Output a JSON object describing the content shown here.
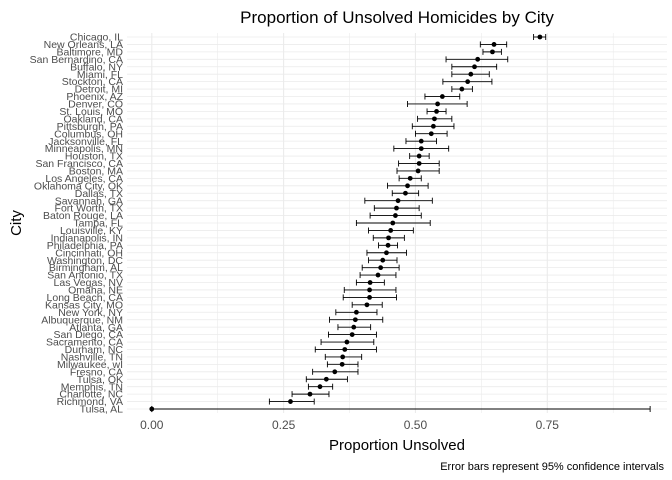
{
  "chart_data": {
    "type": "scatter",
    "title": "Proportion of Unsolved Homicides by City",
    "xlabel": "Proportion Unsolved",
    "ylabel": "City",
    "caption": "Error bars represent 95% confidence intervals",
    "xlim": [
      -0.047,
      0.977
    ],
    "x_ticks": [
      "0.00",
      "0.25",
      "0.50",
      "0.75"
    ],
    "x_tick_values": [
      0,
      0.25,
      0.5,
      0.75
    ],
    "grid": true,
    "legend": "none",
    "colors": {
      "point": "#000000",
      "grid": "#ebebeb",
      "error_bar": "#000000"
    },
    "points": [
      {
        "city": "Chicago, IL",
        "estimate": 0.736,
        "low": 0.724,
        "high": 0.747
      },
      {
        "city": "New Orleans, LA",
        "estimate": 0.649,
        "low": 0.623,
        "high": 0.673
      },
      {
        "city": "Baltimore, MD",
        "estimate": 0.646,
        "low": 0.628,
        "high": 0.663
      },
      {
        "city": "San Bernardino, CA",
        "estimate": 0.618,
        "low": 0.558,
        "high": 0.675
      },
      {
        "city": "Buffalo, NY",
        "estimate": 0.612,
        "low": 0.569,
        "high": 0.654
      },
      {
        "city": "Miami, FL",
        "estimate": 0.605,
        "low": 0.569,
        "high": 0.64
      },
      {
        "city": "Stockton, CA",
        "estimate": 0.599,
        "low": 0.552,
        "high": 0.645
      },
      {
        "city": "Detroit, MI",
        "estimate": 0.588,
        "low": 0.569,
        "high": 0.608
      },
      {
        "city": "Phoenix, AZ",
        "estimate": 0.551,
        "low": 0.518,
        "high": 0.584
      },
      {
        "city": "Denver, CO",
        "estimate": 0.542,
        "low": 0.485,
        "high": 0.598
      },
      {
        "city": "St. Louis, MO",
        "estimate": 0.54,
        "low": 0.522,
        "high": 0.558
      },
      {
        "city": "Oakland, CA",
        "estimate": 0.536,
        "low": 0.504,
        "high": 0.569
      },
      {
        "city": "Pittsburgh, PA",
        "estimate": 0.534,
        "low": 0.494,
        "high": 0.573
      },
      {
        "city": "Columbus, OH",
        "estimate": 0.53,
        "low": 0.5,
        "high": 0.56
      },
      {
        "city": "Jacksonville, FL",
        "estimate": 0.511,
        "low": 0.482,
        "high": 0.54
      },
      {
        "city": "Minneapolis, MN",
        "estimate": 0.511,
        "low": 0.459,
        "high": 0.563
      },
      {
        "city": "Houston, TX",
        "estimate": 0.507,
        "low": 0.489,
        "high": 0.526
      },
      {
        "city": "San Francisco, CA",
        "estimate": 0.507,
        "low": 0.468,
        "high": 0.545
      },
      {
        "city": "Boston, MA",
        "estimate": 0.505,
        "low": 0.465,
        "high": 0.545
      },
      {
        "city": "Los Angeles, CA",
        "estimate": 0.49,
        "low": 0.469,
        "high": 0.511
      },
      {
        "city": "Oklahoma City, OK",
        "estimate": 0.485,
        "low": 0.447,
        "high": 0.524
      },
      {
        "city": "Dallas, TX",
        "estimate": 0.481,
        "low": 0.456,
        "high": 0.506
      },
      {
        "city": "Savannah, GA",
        "estimate": 0.467,
        "low": 0.404,
        "high": 0.532
      },
      {
        "city": "Fort Worth, TX",
        "estimate": 0.464,
        "low": 0.422,
        "high": 0.507
      },
      {
        "city": "Baton Rouge, LA",
        "estimate": 0.462,
        "low": 0.414,
        "high": 0.511
      },
      {
        "city": "Tampa, FL",
        "estimate": 0.457,
        "low": 0.388,
        "high": 0.528
      },
      {
        "city": "Louisville, KY",
        "estimate": 0.453,
        "low": 0.411,
        "high": 0.496
      },
      {
        "city": "Indianapolis, IN",
        "estimate": 0.449,
        "low": 0.42,
        "high": 0.479
      },
      {
        "city": "Philadelphia, PA",
        "estimate": 0.448,
        "low": 0.43,
        "high": 0.466
      },
      {
        "city": "Cincinnati, OH",
        "estimate": 0.445,
        "low": 0.408,
        "high": 0.483
      },
      {
        "city": "Washington, DC",
        "estimate": 0.438,
        "low": 0.411,
        "high": 0.465
      },
      {
        "city": "Birmingham, AL",
        "estimate": 0.434,
        "low": 0.399,
        "high": 0.469
      },
      {
        "city": "San Antonio, TX",
        "estimate": 0.429,
        "low": 0.395,
        "high": 0.463
      },
      {
        "city": "Las Vegas, NV",
        "estimate": 0.414,
        "low": 0.388,
        "high": 0.441
      },
      {
        "city": "Omaha, NE",
        "estimate": 0.413,
        "low": 0.365,
        "high": 0.463
      },
      {
        "city": "Long Beach, CA",
        "estimate": 0.413,
        "low": 0.363,
        "high": 0.464
      },
      {
        "city": "Kansas City, MO",
        "estimate": 0.408,
        "low": 0.38,
        "high": 0.437
      },
      {
        "city": "New York, NY",
        "estimate": 0.388,
        "low": 0.349,
        "high": 0.427
      },
      {
        "city": "Albuquerque, NM",
        "estimate": 0.386,
        "low": 0.337,
        "high": 0.438
      },
      {
        "city": "Atlanta, GA",
        "estimate": 0.383,
        "low": 0.353,
        "high": 0.415
      },
      {
        "city": "San Diego, CA",
        "estimate": 0.38,
        "low": 0.335,
        "high": 0.426
      },
      {
        "city": "Sacramento, CA",
        "estimate": 0.37,
        "low": 0.321,
        "high": 0.421
      },
      {
        "city": "Durham, NC",
        "estimate": 0.366,
        "low": 0.31,
        "high": 0.426
      },
      {
        "city": "Nashville, TN",
        "estimate": 0.362,
        "low": 0.329,
        "high": 0.398
      },
      {
        "city": "Milwaukee, wI",
        "estimate": 0.361,
        "low": 0.333,
        "high": 0.391
      },
      {
        "city": "Fresno, CA",
        "estimate": 0.347,
        "low": 0.305,
        "high": 0.391
      },
      {
        "city": "Tulsa, OK",
        "estimate": 0.331,
        "low": 0.293,
        "high": 0.371
      },
      {
        "city": "Memphis, TN",
        "estimate": 0.319,
        "low": 0.297,
        "high": 0.343
      },
      {
        "city": "Charlotte, NC",
        "estimate": 0.3,
        "low": 0.266,
        "high": 0.336
      },
      {
        "city": "Richmond, VA",
        "estimate": 0.263,
        "low": 0.223,
        "high": 0.308
      },
      {
        "city": "Tulsa, AL",
        "estimate": 0.0,
        "low": 0.0,
        "high": 0.945
      }
    ]
  }
}
